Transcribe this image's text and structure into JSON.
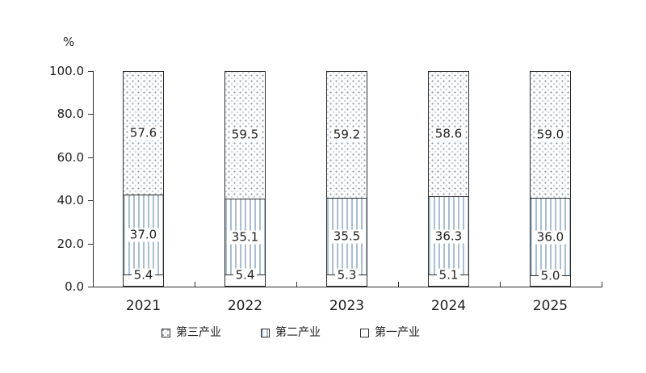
{
  "chart_data": {
    "type": "bar",
    "stacked": true,
    "title": "",
    "unit_label": "%",
    "categories": [
      "2021",
      "2022",
      "2023",
      "2024",
      "2025"
    ],
    "series": [
      {
        "name": "第一产业",
        "pattern": "plain",
        "values": [
          5.4,
          5.4,
          5.3,
          5.1,
          5.0
        ]
      },
      {
        "name": "第二产业",
        "pattern": "vertical-lines",
        "values": [
          37.0,
          35.1,
          35.5,
          36.3,
          36.0
        ]
      },
      {
        "name": "第三产业",
        "pattern": "dots",
        "values": [
          57.6,
          59.5,
          59.2,
          58.6,
          59.0
        ]
      }
    ],
    "data_label_decimals": 1,
    "ylim": [
      0,
      100
    ],
    "ytick_labels": [
      "100.0",
      "80.0",
      "60.0",
      "40.0",
      "20.0",
      "0.0"
    ],
    "ytick_values": [
      100,
      80,
      60,
      40,
      20,
      0
    ],
    "grid": false,
    "legend_position": "bottom",
    "legend_order": [
      "第三产业",
      "第二产业",
      "第一产业"
    ]
  },
  "colors": {
    "axis": "#2f2f2f",
    "segment_border": "#2e2e2e",
    "text": "#1f1f1f",
    "line_fill": "#a8bed2",
    "dot_dark": "#8a949e",
    "dot_light": "#c6d2dc"
  }
}
